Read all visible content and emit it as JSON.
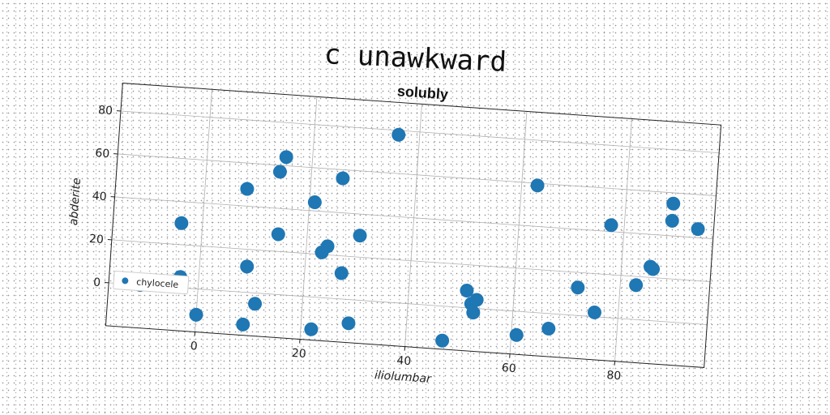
{
  "page": {
    "title": "c unawkward"
  },
  "chart_data": {
    "type": "scatter",
    "title": "solubly",
    "xlabel": "iliolumbar",
    "ylabel": "abderite",
    "xlim": [
      -17,
      97
    ],
    "ylim": [
      -20,
      93
    ],
    "xticks": [
      0,
      20,
      40,
      60,
      80
    ],
    "yticks": [
      0,
      20,
      40,
      60,
      80
    ],
    "grid": true,
    "legend_position": "lower-left",
    "series": [
      {
        "name": "chylocele",
        "color": "#1f77b4",
        "points": [
          [
            -11,
            0
          ],
          [
            -4,
            30
          ],
          [
            -3.5,
            5
          ],
          [
            0,
            -12
          ],
          [
            8,
            48
          ],
          [
            9,
            -15
          ],
          [
            9,
            12
          ],
          [
            11,
            -5
          ],
          [
            14,
            57
          ],
          [
            14.5,
            28
          ],
          [
            15,
            64
          ],
          [
            21,
            44
          ],
          [
            22,
            -15
          ],
          [
            23,
            21
          ],
          [
            24,
            24
          ],
          [
            26,
            56
          ],
          [
            27,
            12
          ],
          [
            29,
            -11
          ],
          [
            30,
            30
          ],
          [
            36,
            78
          ],
          [
            47,
            -16
          ],
          [
            51,
            8
          ],
          [
            52,
            2
          ],
          [
            52.5,
            -2
          ],
          [
            53,
            4
          ],
          [
            61,
            -11
          ],
          [
            63,
            59
          ],
          [
            67,
            -7
          ],
          [
            72,
            13
          ],
          [
            75.5,
            2
          ],
          [
            77.5,
            43
          ],
          [
            83,
            16
          ],
          [
            85.5,
            25
          ],
          [
            86,
            24
          ],
          [
            89,
            55
          ],
          [
            89,
            47
          ],
          [
            94,
            44
          ]
        ]
      }
    ]
  }
}
